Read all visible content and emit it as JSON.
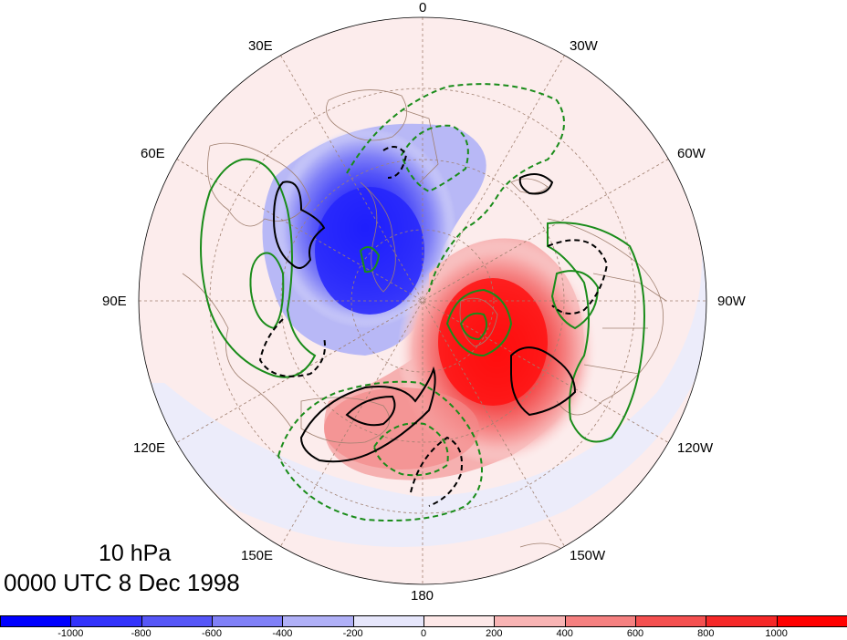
{
  "map": {
    "level_label": "10 hPa",
    "time_label": "0000 UTC 8 Dec 1998",
    "longitude_labels": {
      "lon_0": "0",
      "lon_30w": "30W",
      "lon_60w": "60W",
      "lon_90w": "90W",
      "lon_120w": "120W",
      "lon_150w": "150W",
      "lon_180": "180",
      "lon_150e": "150E",
      "lon_120e": "120E",
      "lon_90e": "90E",
      "lon_60e": "60E",
      "lon_30e": "30E"
    }
  },
  "colorbar": {
    "colors": [
      "#0000ff",
      "#3333fb",
      "#5656f7",
      "#8080f7",
      "#b0b0f7",
      "#e6e6fb",
      "#fde8e8",
      "#f8b4b4",
      "#f58080",
      "#f45050",
      "#f52828",
      "#ff0000"
    ],
    "tick_labels": [
      "-1000",
      "-800",
      "-600",
      "-400",
      "-200",
      "0",
      "200",
      "400",
      "600",
      "800",
      "1000"
    ]
  },
  "colors": {
    "green_contour": "#1a8c1a",
    "black_contour": "#000000",
    "coastline": "#a08070",
    "graticule": "#a08070"
  }
}
